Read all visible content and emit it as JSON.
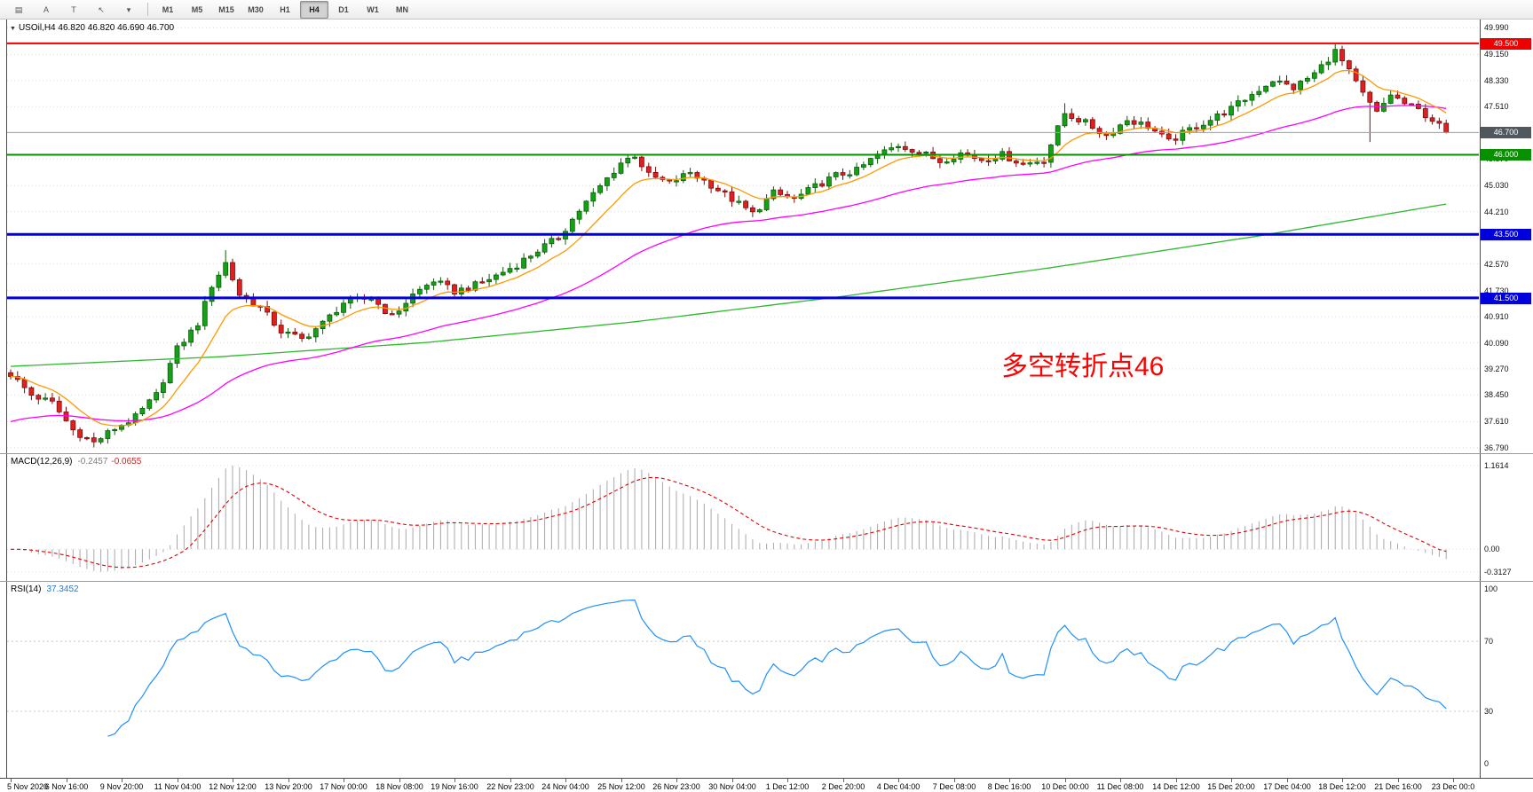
{
  "toolbar": {
    "icon_buttons": [
      {
        "name": "chart-list-icon",
        "glyph": "▤"
      },
      {
        "name": "text-tool-a-button",
        "glyph": "A"
      },
      {
        "name": "text-tool-t-button",
        "glyph": "T"
      },
      {
        "name": "cursor-tool-icon",
        "glyph": "↖"
      },
      {
        "name": "cursor-dropdown-caret-icon",
        "glyph": "▾"
      }
    ],
    "timeframes": [
      {
        "label": "M1",
        "active": false
      },
      {
        "label": "M5",
        "active": false
      },
      {
        "label": "M15",
        "active": false
      },
      {
        "label": "M30",
        "active": false
      },
      {
        "label": "H1",
        "active": false
      },
      {
        "label": "H4",
        "active": true
      },
      {
        "label": "D1",
        "active": false
      },
      {
        "label": "W1",
        "active": false
      },
      {
        "label": "MN",
        "active": false
      }
    ]
  },
  "chart": {
    "header": {
      "collapse_icon": "▼",
      "symbol": "USOil,H4",
      "ohlc": "46.820 46.820 46.690 46.700"
    },
    "annotation": {
      "text": "多空转折点46",
      "color": "#ff0000"
    },
    "price_axis": [
      {
        "text": "49.990",
        "v": 49.99
      },
      {
        "text": "49.150",
        "v": 49.15
      },
      {
        "text": "48.330",
        "v": 48.33
      },
      {
        "text": "47.510",
        "v": 47.51
      },
      {
        "text": "46.690",
        "v": 46.69
      },
      {
        "text": "45.870",
        "v": 45.87
      },
      {
        "text": "45.030",
        "v": 45.03
      },
      {
        "text": "44.210",
        "v": 44.21
      },
      {
        "text": "43.390",
        "v": 43.39
      },
      {
        "text": "42.570",
        "v": 42.57
      },
      {
        "text": "41.730",
        "v": 41.73
      },
      {
        "text": "40.910",
        "v": 40.91
      },
      {
        "text": "40.090",
        "v": 40.09
      },
      {
        "text": "39.270",
        "v": 39.27
      },
      {
        "text": "38.450",
        "v": 38.45
      },
      {
        "text": "37.610",
        "v": 37.61
      },
      {
        "text": "36.790",
        "v": 36.79
      }
    ],
    "tags": [
      {
        "text": "49.500",
        "v": 49.5,
        "color": "#ee0000",
        "name": "resistance-line-price-tag"
      },
      {
        "text": "46.700",
        "v": 46.7,
        "color": "#50585e",
        "name": "current-price-tag"
      },
      {
        "text": "46.000",
        "v": 46.0,
        "color": "#089000",
        "name": "pivot-line-price-tag"
      },
      {
        "text": "43.500",
        "v": 43.5,
        "color": "#0000dd",
        "name": "support-line-price-tag-1"
      },
      {
        "text": "41.500",
        "v": 41.5,
        "color": "#0000dd",
        "name": "support-line-price-tag-2"
      }
    ],
    "hlines": [
      {
        "v": 49.5,
        "color": "#ee0000",
        "w": 2
      },
      {
        "v": 46.0,
        "color": "#089000",
        "w": 2
      },
      {
        "v": 43.5,
        "color": "#0000dd",
        "w": 3
      },
      {
        "v": 41.5,
        "color": "#0000dd",
        "w": 3
      }
    ],
    "bid_line": {
      "v": 46.7,
      "color": "#9aa0a6",
      "w": 1
    }
  },
  "macd": {
    "label": "MACD(12,26,9)",
    "value_main": "-0.2457",
    "value_signal": "-0.0655",
    "axis": [
      {
        "text": "1.1614",
        "v": 1.1614
      },
      {
        "text": "0.00",
        "v": 0
      },
      {
        "text": "-0.3127",
        "v": -0.3127
      }
    ]
  },
  "rsi": {
    "label": "RSI(14)",
    "value": "37.3452",
    "axis": [
      {
        "text": "100",
        "v": 100
      },
      {
        "text": "70",
        "v": 70
      },
      {
        "text": "30",
        "v": 30
      },
      {
        "text": "0",
        "v": 0
      }
    ],
    "levels": [
      70,
      30
    ]
  },
  "time_axis": {
    "labels": [
      "5 Nov 2020",
      "6 Nov 16:00",
      "9 Nov 20:00",
      "11 Nov 04:00",
      "12 Nov 12:00",
      "13 Nov 20:00",
      "17 Nov 00:00",
      "18 Nov 08:00",
      "19 Nov 16:00",
      "22 Nov 23:00",
      "24 Nov 04:00",
      "25 Nov 12:00",
      "26 Nov 23:00",
      "30 Nov 04:00",
      "1 Dec 12:00",
      "2 Dec 20:00",
      "4 Dec 04:00",
      "7 Dec 08:00",
      "8 Dec 16:00",
      "10 Dec 00:00",
      "11 Dec 08:00",
      "14 Dec 12:00",
      "15 Dec 20:00",
      "17 Dec 04:00",
      "18 Dec 12:00",
      "21 Dec 16:00",
      "23 Dec 00:0"
    ]
  },
  "chart_data": {
    "type": "candlestick",
    "symbol": "USOil",
    "timeframe": "H4",
    "bars": 208,
    "ylim": [
      36.62,
      50.25
    ],
    "final_close": 46.7,
    "noise_amplitude": 0.22,
    "close_waypoints": [
      [
        0,
        39.1
      ],
      [
        3,
        38.45
      ],
      [
        6,
        38.2
      ],
      [
        9,
        37.35
      ],
      [
        12,
        36.95
      ],
      [
        15,
        37.4
      ],
      [
        18,
        37.75
      ],
      [
        21,
        38.45
      ],
      [
        24,
        39.9
      ],
      [
        27,
        40.7
      ],
      [
        29,
        41.9
      ],
      [
        31,
        42.6
      ],
      [
        33,
        41.6
      ],
      [
        36,
        41.2
      ],
      [
        39,
        40.45
      ],
      [
        42,
        40.2
      ],
      [
        45,
        40.7
      ],
      [
        48,
        41.35
      ],
      [
        52,
        41.5
      ],
      [
        55,
        40.9
      ],
      [
        58,
        41.6
      ],
      [
        61,
        42.05
      ],
      [
        64,
        41.7
      ],
      [
        67,
        41.9
      ],
      [
        70,
        42.2
      ],
      [
        73,
        42.55
      ],
      [
        76,
        43.0
      ],
      [
        79,
        43.4
      ],
      [
        82,
        44.25
      ],
      [
        85,
        45.0
      ],
      [
        88,
        45.75
      ],
      [
        90,
        46.0
      ],
      [
        92,
        45.35
      ],
      [
        95,
        45.1
      ],
      [
        98,
        45.45
      ],
      [
        101,
        45.05
      ],
      [
        104,
        44.6
      ],
      [
        107,
        44.15
      ],
      [
        110,
        44.8
      ],
      [
        113,
        44.6
      ],
      [
        116,
        45.0
      ],
      [
        119,
        45.35
      ],
      [
        122,
        45.5
      ],
      [
        125,
        46.0
      ],
      [
        128,
        46.3
      ],
      [
        131,
        46.1
      ],
      [
        134,
        45.8
      ],
      [
        137,
        46.05
      ],
      [
        140,
        45.85
      ],
      [
        143,
        46.0
      ],
      [
        146,
        45.7
      ],
      [
        149,
        45.85
      ],
      [
        152,
        47.3
      ],
      [
        155,
        47.0
      ],
      [
        158,
        46.6
      ],
      [
        161,
        47.1
      ],
      [
        164,
        46.9
      ],
      [
        167,
        46.4
      ],
      [
        170,
        46.8
      ],
      [
        173,
        47.1
      ],
      [
        176,
        47.45
      ],
      [
        179,
        47.9
      ],
      [
        182,
        48.35
      ],
      [
        185,
        48.1
      ],
      [
        188,
        48.55
      ],
      [
        191,
        49.25
      ],
      [
        193,
        48.6
      ],
      [
        195,
        47.9
      ],
      [
        197,
        47.3
      ],
      [
        199,
        47.9
      ],
      [
        201,
        47.6
      ],
      [
        203,
        47.4
      ],
      [
        205,
        47.1
      ],
      [
        207,
        46.7
      ]
    ],
    "wick_overrides": [
      {
        "i": 12,
        "low": 36.8
      },
      {
        "i": 31,
        "high": 43.0
      },
      {
        "i": 152,
        "high": 47.62
      },
      {
        "i": 191,
        "high": 49.47
      },
      {
        "i": 196,
        "low": 46.4
      }
    ],
    "candle_colors": {
      "up_fill": "#16a016",
      "up_stroke": "#0a5c0a",
      "down_fill": "#e02020",
      "down_stroke": "#7a0c0c"
    },
    "ma_fast": {
      "type": "ema",
      "period": 10,
      "color": "#ff9900"
    },
    "ma_mid": {
      "type": "ema",
      "period": 48,
      "seed": 37.55,
      "color": "#ff00ff"
    },
    "ma_slow": {
      "color": "#2eb82e",
      "waypoints": [
        [
          0,
          39.35
        ],
        [
          30,
          39.65
        ],
        [
          60,
          40.1
        ],
        [
          90,
          40.75
        ],
        [
          120,
          41.55
        ],
        [
          150,
          42.45
        ],
        [
          180,
          43.45
        ],
        [
          207,
          44.45
        ]
      ]
    },
    "macd": {
      "fast": 12,
      "slow": 26,
      "signal_period": 9,
      "display_max": 1.1614,
      "display_min": -0.3127,
      "histogram_color": "#a8a8a8",
      "signal_color": "#e00000"
    },
    "rsi": {
      "period": 14,
      "color": "#1e90ff"
    }
  }
}
